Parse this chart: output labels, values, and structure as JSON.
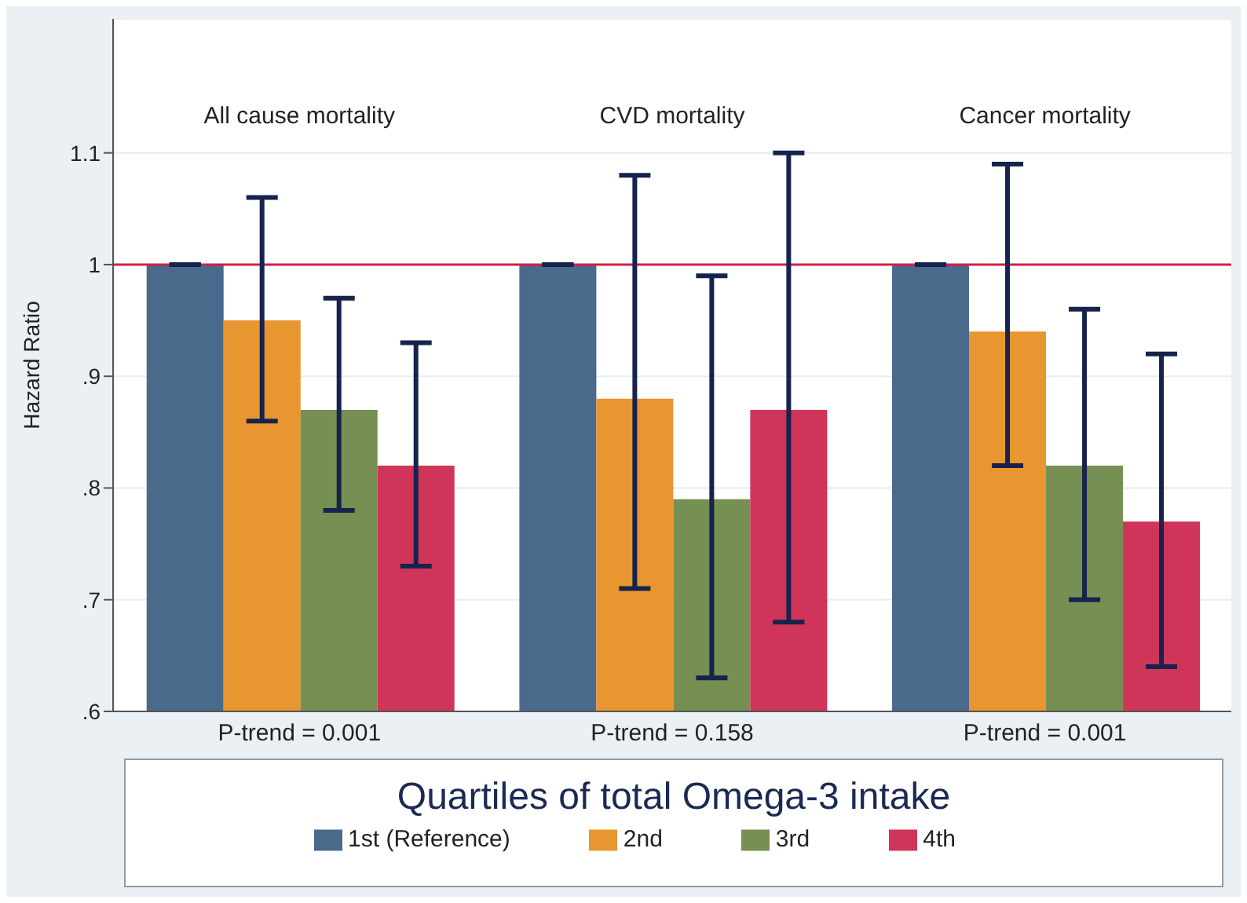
{
  "chart_data": {
    "type": "bar",
    "categories": [
      "All cause mortality",
      "CVD mortality",
      "Cancer mortality"
    ],
    "ylabel": "Hazard Ratio",
    "legend_title": "Quartiles of total Omega-3 intake",
    "series": [
      {
        "name": "1st (Reference)",
        "color": "#4a6a8c",
        "values": [
          1,
          1,
          1
        ],
        "errors": [
          [
            1,
            1
          ],
          [
            1,
            1
          ],
          [
            1,
            1
          ]
        ]
      },
      {
        "name": "2nd",
        "color": "#e8962f",
        "values": [
          0.95,
          0.88,
          0.94
        ],
        "errors": [
          [
            0.86,
            1.06
          ],
          [
            0.71,
            1.08
          ],
          [
            0.82,
            1.09
          ]
        ]
      },
      {
        "name": "3rd",
        "color": "#768f52",
        "values": [
          0.87,
          0.79,
          0.82
        ],
        "errors": [
          [
            0.78,
            0.97
          ],
          [
            0.63,
            0.99
          ],
          [
            0.7,
            0.96
          ]
        ]
      },
      {
        "name": "4th",
        "color": "#cf3558",
        "values": [
          0.82,
          0.87,
          0.77
        ],
        "errors": [
          [
            0.73,
            0.93
          ],
          [
            0.68,
            1.1
          ],
          [
            0.64,
            0.92
          ]
        ]
      }
    ],
    "ylim": [
      0.6,
      1.22
    ],
    "yticks": [
      {
        "value": 0.6,
        "label": ".6"
      },
      {
        "value": 0.7,
        "label": ".7"
      },
      {
        "value": 0.8,
        "label": ".8"
      },
      {
        "value": 0.9,
        "label": ".9"
      },
      1,
      1.1
    ],
    "grid": "y",
    "ref_lines": [
      {
        "axis": "y",
        "value": 1,
        "color": "#d0204a"
      }
    ],
    "annotations": [
      "P-trend = 0.001",
      "P-trend = 0.158",
      "P-trend = 0.001"
    ],
    "legend": "bottom"
  }
}
